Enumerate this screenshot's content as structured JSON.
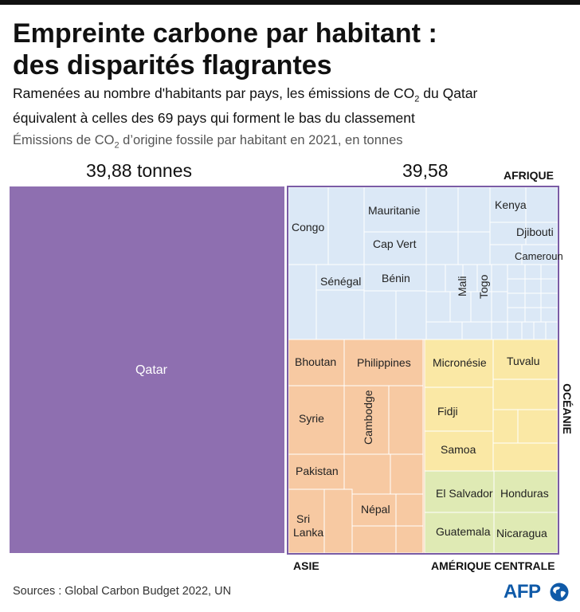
{
  "title_line1": "Empreinte carbone par habitant :",
  "title_line2": "des disparités flagrantes",
  "subtitle_line1_a": "Ramenées au nombre d'habitants par pays, les émissions de CO",
  "subtitle_line1_sub": "2",
  "subtitle_line1_b": " du Qatar",
  "subtitle_line2": "équivalent à celles des 69 pays qui forment le bas du classement",
  "caption_a": "Émissions de CO",
  "caption_sub": "2",
  "caption_b": " d’origine fossile par habitant en 2021, en tonnes",
  "qatar_total": "39,88 tonnes",
  "others_total": "39,58",
  "sources": "Sources : Global Carbon Budget 2022, UN",
  "logo_text": "AFP",
  "colors": {
    "qatar": "#8e6fb0",
    "afrique": "#dbe8f6",
    "asie": "#f7c9a2",
    "oceanie": "#fae8a5",
    "amerique": "#dfeab4",
    "frame": "#7a5ca6"
  },
  "chart_data": {
    "type": "treemap",
    "unit": "tonnes",
    "items": [
      {
        "name": "Qatar",
        "value": 39.88
      }
    ],
    "groups_total": 39.58,
    "groups": [
      {
        "name": "AFRIQUE",
        "labeled": [
          "Congo",
          "Mauritanie",
          "Kenya",
          "Djibouti",
          "Cameroun",
          "Cap Vert",
          "Sénégal",
          "Bénin",
          "Mali",
          "Togo"
        ]
      },
      {
        "name": "ASIE",
        "labeled": [
          "Bhoutan",
          "Philippines",
          "Syrie",
          "Cambodge",
          "Pakistan",
          "Népal",
          "Sri Lanka"
        ]
      },
      {
        "name": "OCÉANIE",
        "labeled": [
          "Micronésie",
          "Tuvalu",
          "Fidji",
          "Samoa"
        ]
      },
      {
        "name": "AMÉRIQUE CENTRALE",
        "labeled": [
          "El Salvador",
          "Honduras",
          "Guatemala",
          "Nicaragua"
        ]
      }
    ]
  }
}
